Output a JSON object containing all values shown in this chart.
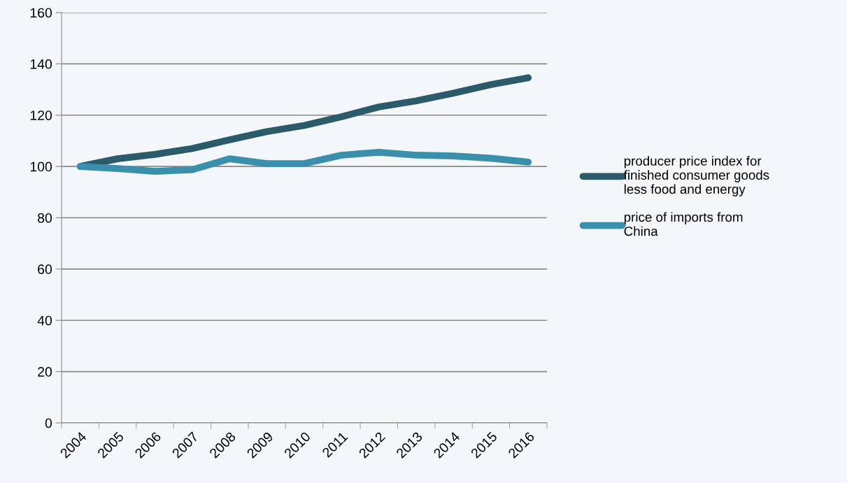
{
  "chart_data": {
    "type": "line",
    "categories": [
      "2004",
      "2005",
      "2006",
      "2007",
      "2008",
      "2009",
      "2010",
      "2011",
      "2012",
      "2013",
      "2014",
      "2015",
      "2016"
    ],
    "series": [
      {
        "name": "producer price index for finished consumer goods less food and energy",
        "color": "#2b5a6b",
        "values": [
          100,
          103,
          104.7,
          107,
          110.4,
          113.6,
          116,
          119.4,
          123.2,
          125.6,
          128.6,
          131.9,
          134.6
        ]
      },
      {
        "name": "price of imports from China",
        "color": "#3a8fad",
        "values": [
          100,
          99.2,
          98.1,
          98.7,
          103,
          101.1,
          101.1,
          104.4,
          105.5,
          104.4,
          104.1,
          103.2,
          101.7
        ]
      }
    ],
    "ylim": [
      0,
      160
    ],
    "yticks": [
      0,
      20,
      40,
      60,
      80,
      100,
      120,
      140,
      160
    ],
    "grid": "y",
    "legend": "right",
    "marker": "none",
    "line_style": "solid"
  }
}
